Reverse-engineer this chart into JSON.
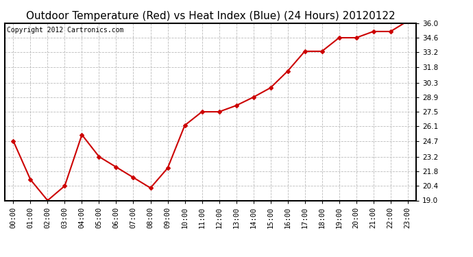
{
  "title": "Outdoor Temperature (Red) vs Heat Index (Blue) (24 Hours) 20120122",
  "copyright_text": "Copyright 2012 Cartronics.com",
  "x_labels": [
    "00:00",
    "01:00",
    "02:00",
    "03:00",
    "04:00",
    "05:00",
    "06:00",
    "07:00",
    "08:00",
    "09:00",
    "10:00",
    "11:00",
    "12:00",
    "13:00",
    "14:00",
    "15:00",
    "16:00",
    "17:00",
    "18:00",
    "19:00",
    "20:00",
    "21:00",
    "22:00",
    "23:00"
  ],
  "temp_values": [
    24.7,
    21.0,
    19.0,
    20.4,
    25.3,
    23.2,
    22.2,
    21.2,
    20.2,
    22.1,
    26.2,
    27.5,
    27.5,
    28.1,
    28.9,
    29.8,
    31.4,
    33.3,
    33.3,
    34.6,
    34.6,
    35.2,
    35.2,
    36.2
  ],
  "ylim_min": 19.0,
  "ylim_max": 36.0,
  "yticks": [
    19.0,
    20.4,
    21.8,
    23.2,
    24.7,
    26.1,
    27.5,
    28.9,
    30.3,
    31.8,
    33.2,
    34.6,
    36.0
  ],
  "line_color": "#cc0000",
  "marker": "D",
  "marker_size": 3,
  "bg_color": "#ffffff",
  "grid_color": "#bbbbbb",
  "title_fontsize": 11,
  "copyright_fontsize": 7,
  "tick_fontsize": 7.5
}
